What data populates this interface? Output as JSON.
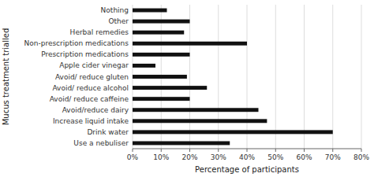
{
  "chart_data": {
    "type": "bar",
    "orientation": "horizontal",
    "categories": [
      "Nothing",
      "Other",
      "Herbal remedies",
      "Non-prescription medications",
      "Prescription medications",
      "Apple cider vinegar",
      "Avoid/ reduce gluten",
      "Avoid/ reduce alcohol",
      "Avoid/ reduce caffeine",
      "Avoid/reduce dairy",
      "Increase liquid intake",
      "Drink water",
      "Use a nebuliser"
    ],
    "values": [
      12,
      20,
      18,
      40,
      20,
      8,
      19,
      26,
      20,
      44,
      47,
      70,
      34
    ],
    "color": "#111111",
    "xlabel": "Percentage of participants",
    "ylabel": "Mucus treatment trialled",
    "xlim": [
      0,
      80
    ],
    "xticks": [
      {
        "value": 0,
        "label": "0%"
      },
      {
        "value": 10,
        "label": "10%"
      },
      {
        "value": 20,
        "label": "20%"
      },
      {
        "value": 30,
        "label": "30%"
      },
      {
        "value": 40,
        "label": "40%"
      },
      {
        "value": 50,
        "label": "50%"
      },
      {
        "value": 60,
        "label": "60%"
      },
      {
        "value": 70,
        "label": "70%"
      },
      {
        "value": 80,
        "label": "80%"
      }
    ],
    "grid": true
  }
}
